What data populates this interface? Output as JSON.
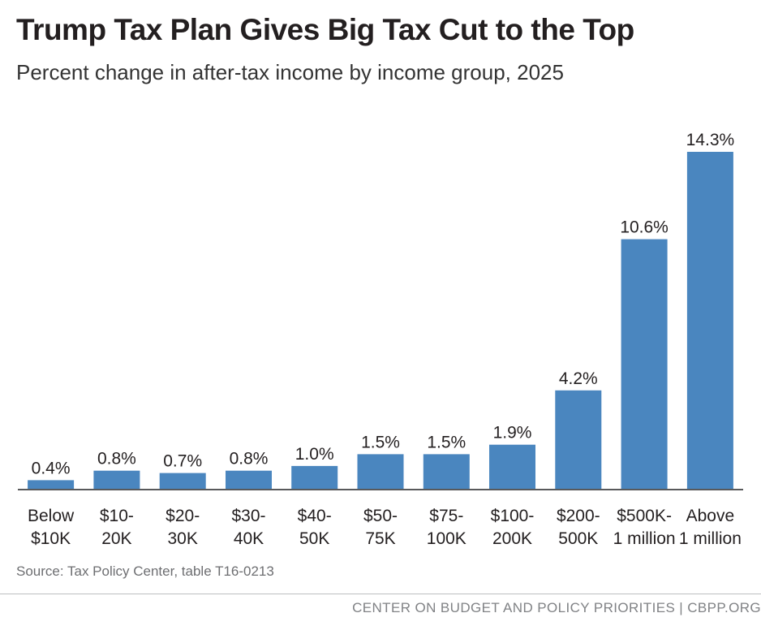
{
  "header": {
    "title": "Trump Tax Plan Gives Big Tax Cut to the Top",
    "subtitle": "Percent change in after-tax income by income group, 2025"
  },
  "colors": {
    "bar": "#4a86bf",
    "axis": "#58595b",
    "text": "#231f20"
  },
  "chart_data": {
    "type": "bar",
    "title": "Trump Tax Plan Gives Big Tax Cut to the Top",
    "subtitle": "Percent change in after-tax income by income group, 2025",
    "xlabel": "",
    "ylabel": "",
    "ylim": [
      0,
      14.3
    ],
    "grid": false,
    "legend": "none",
    "categories": [
      [
        "Below",
        "$10K"
      ],
      [
        "$10-",
        "20K"
      ],
      [
        "$20-",
        "30K"
      ],
      [
        "$30-",
        "40K"
      ],
      [
        "$40-",
        "50K"
      ],
      [
        "$50-",
        "75K"
      ],
      [
        "$75-",
        "100K"
      ],
      [
        "$100-",
        "200K"
      ],
      [
        "$200-",
        "500K"
      ],
      [
        "$500K-",
        "1 million"
      ],
      [
        "Above",
        "1 million"
      ]
    ],
    "values": [
      0.4,
      0.8,
      0.7,
      0.8,
      1.0,
      1.5,
      1.5,
      1.9,
      4.2,
      10.6,
      14.3
    ],
    "labels": [
      "0.4%",
      "0.8%",
      "0.7%",
      "0.8%",
      "1.0%",
      "1.5%",
      "1.5%",
      "1.9%",
      "4.2%",
      "10.6%",
      "14.3%"
    ]
  },
  "source": "Source: Tax Policy Center, table T16-0213",
  "footer": "CENTER ON BUDGET AND POLICY PRIORITIES | CBPP.ORG"
}
